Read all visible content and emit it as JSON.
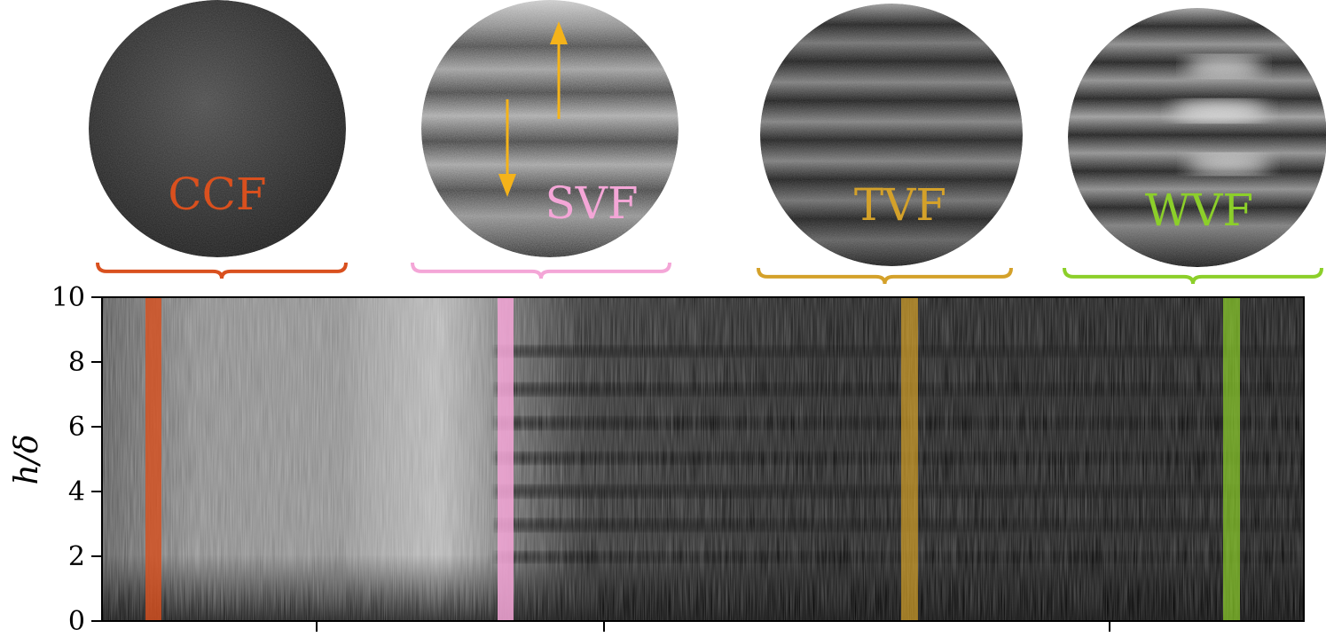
{
  "colors": {
    "CCF": "#d9501e",
    "SVF": "#f4a6d7",
    "TVF": "#d4a12a",
    "WVF": "#8ccf2a",
    "arrow": "#f5b31a"
  },
  "panels": [
    {
      "key": "CCF",
      "label": "CCF",
      "pattern": "uniform"
    },
    {
      "key": "SVF",
      "label": "SVF",
      "pattern": "spiral",
      "arrows": [
        "arrow-down",
        "arrow-up"
      ]
    },
    {
      "key": "TVF",
      "label": "TVF",
      "pattern": "toroidal"
    },
    {
      "key": "WVF",
      "label": "WVF",
      "pattern": "wavy"
    }
  ],
  "spatiotemporal_axis": {
    "ylabel": "h/δ",
    "ylim": [
      0,
      10
    ],
    "yticks": [
      {
        "value": 0,
        "label": "0"
      },
      {
        "value": 2,
        "label": "2"
      },
      {
        "value": 4,
        "label": "4"
      },
      {
        "value": 6,
        "label": "6"
      },
      {
        "value": 8,
        "label": "8"
      },
      {
        "value": 10,
        "label": "10"
      }
    ]
  }
}
